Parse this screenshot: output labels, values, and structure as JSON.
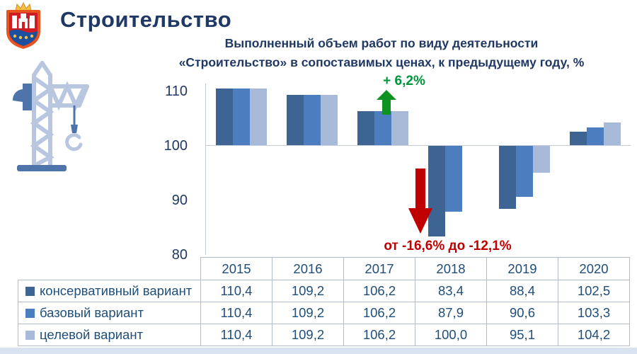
{
  "header": {
    "title": "Строительство",
    "subtitle_line1": "Выполненный объем работ по виду деятельности",
    "subtitle_line2": "«Строительство» в сопоставимых ценах, к предыдущему году, %"
  },
  "chart_data": {
    "type": "bar",
    "title": "Выполненный объем работ по виду деятельности «Строительство» в сопоставимых ценах, к предыдущему году, %",
    "categories": [
      "2015",
      "2016",
      "2017",
      "2018",
      "2019",
      "2020"
    ],
    "series": [
      {
        "name": "консервативный вариант",
        "color": "#3D6493",
        "values": [
          110.4,
          109.2,
          106.2,
          83.4,
          88.4,
          102.5
        ]
      },
      {
        "name": "базовый вариант",
        "color": "#4C7DBE",
        "values": [
          110.4,
          109.2,
          106.2,
          87.9,
          90.6,
          103.3
        ]
      },
      {
        "name": "целевой вариант",
        "color": "#A9BAD8",
        "values": [
          110.4,
          109.2,
          106.2,
          100.0,
          95.1,
          104.2
        ]
      }
    ],
    "baseline": 100,
    "ylim": [
      80,
      111
    ],
    "yticks": [
      110,
      100,
      90,
      80
    ],
    "ytick_labels": [
      "110",
      "100",
      "90",
      "80"
    ],
    "grid": "baseline-only",
    "legend_position": "table-left-column",
    "annotations": [
      {
        "text": "+ 6,2%",
        "color": "#00953C",
        "target": "2017",
        "direction": "up"
      },
      {
        "text": "от -16,6% до -12,1%",
        "color": "#C00000",
        "target": "2018",
        "direction": "down"
      }
    ]
  },
  "table": {
    "years": [
      "2015",
      "2016",
      "2017",
      "2018",
      "2019",
      "2020"
    ],
    "rows": [
      {
        "label": "консервативный вариант",
        "values": [
          "110,4",
          "109,2",
          "106,2",
          "83,4",
          "88,4",
          "102,5"
        ]
      },
      {
        "label": "базовый вариант",
        "values": [
          "110,4",
          "109,2",
          "106,2",
          "87,9",
          "90,6",
          "103,3"
        ]
      },
      {
        "label": "целевой вариант",
        "values": [
          "110,4",
          "109,2",
          "106,2",
          "100,0",
          "95,1",
          "104,2"
        ]
      }
    ]
  },
  "colors": {
    "title_text": "#1F3864",
    "table_text": "#1F4E79",
    "table_border": "#B3BCCB",
    "green_annotation": "#00953C",
    "red_annotation": "#C00000",
    "bottom_strip": "#D9E2F0"
  },
  "icons": {
    "logo": "kaliningrad-region-coat-of-arms",
    "crane": "construction-crane"
  }
}
